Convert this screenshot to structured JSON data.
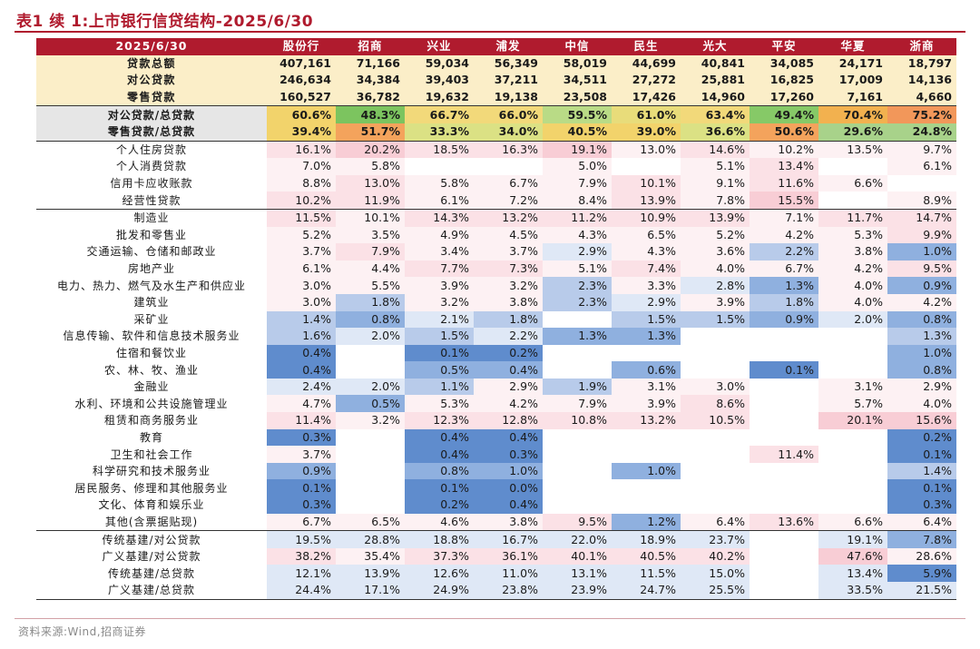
{
  "title": "表1 续 1:上市银行信贷结构-2025/6/30",
  "source": "资料来源:Wind,招商证券",
  "header": {
    "label": "2025/6/30",
    "banks": [
      "股份行",
      "招商",
      "兴业",
      "浦发",
      "中信",
      "民生",
      "光大",
      "平安",
      "华夏",
      "浙商"
    ]
  },
  "rows": [
    {
      "label": "贷款总额",
      "values": [
        "407,161",
        "71,166",
        "59,034",
        "56,349",
        "58,019",
        "44,699",
        "40,841",
        "34,085",
        "24,171",
        "18,797"
      ]
    },
    {
      "label": "对公贷款",
      "values": [
        "246,634",
        "34,384",
        "39,403",
        "37,211",
        "34,511",
        "27,272",
        "25,881",
        "16,825",
        "17,009",
        "14,136"
      ]
    },
    {
      "label": "零售贷款",
      "values": [
        "160,527",
        "36,782",
        "19,632",
        "19,138",
        "23,508",
        "17,426",
        "14,960",
        "17,260",
        "7,161",
        "4,660"
      ]
    },
    {
      "label": "对公贷款/总贷款",
      "values": [
        "60.6%",
        "48.3%",
        "66.7%",
        "66.0%",
        "59.5%",
        "61.0%",
        "63.4%",
        "49.4%",
        "70.4%",
        "75.2%"
      ]
    },
    {
      "label": "零售贷款/总贷款",
      "values": [
        "39.4%",
        "51.7%",
        "33.3%",
        "34.0%",
        "40.5%",
        "39.0%",
        "36.6%",
        "50.6%",
        "29.6%",
        "24.8%"
      ]
    },
    {
      "label": "个人住房贷款",
      "values": [
        "16.1%",
        "20.2%",
        "18.5%",
        "16.3%",
        "19.1%",
        "13.0%",
        "14.6%",
        "10.2%",
        "13.5%",
        "9.7%"
      ]
    },
    {
      "label": "个人消费贷款",
      "values": [
        "7.0%",
        "5.8%",
        "",
        "",
        "5.0%",
        "",
        "5.1%",
        "13.4%",
        "",
        "6.1%"
      ]
    },
    {
      "label": "信用卡应收账款",
      "values": [
        "8.8%",
        "13.0%",
        "5.8%",
        "6.7%",
        "7.9%",
        "10.1%",
        "9.1%",
        "11.6%",
        "6.6%",
        ""
      ]
    },
    {
      "label": "经营性贷款",
      "values": [
        "10.2%",
        "11.9%",
        "6.1%",
        "7.2%",
        "8.4%",
        "13.9%",
        "7.8%",
        "15.5%",
        "",
        "8.9%"
      ]
    },
    {
      "label": "制造业",
      "values": [
        "11.5%",
        "10.1%",
        "14.3%",
        "13.2%",
        "11.2%",
        "10.9%",
        "13.9%",
        "7.1%",
        "11.7%",
        "14.7%"
      ]
    },
    {
      "label": "批发和零售业",
      "values": [
        "5.2%",
        "3.5%",
        "4.9%",
        "4.5%",
        "4.3%",
        "6.5%",
        "5.2%",
        "4.2%",
        "5.3%",
        "9.9%"
      ]
    },
    {
      "label": "交通运输、仓储和邮政业",
      "values": [
        "3.7%",
        "7.9%",
        "3.4%",
        "3.7%",
        "2.9%",
        "4.3%",
        "3.6%",
        "2.2%",
        "3.8%",
        "1.0%"
      ]
    },
    {
      "label": "房地产业",
      "values": [
        "6.1%",
        "4.4%",
        "7.7%",
        "7.3%",
        "5.1%",
        "7.4%",
        "4.0%",
        "6.7%",
        "4.2%",
        "9.5%"
      ]
    },
    {
      "label": "电力、热力、燃气及水生产和供应业",
      "values": [
        "3.0%",
        "5.5%",
        "3.9%",
        "3.2%",
        "2.3%",
        "3.3%",
        "2.8%",
        "1.3%",
        "4.0%",
        "0.9%"
      ]
    },
    {
      "label": "建筑业",
      "values": [
        "3.0%",
        "1.8%",
        "3.2%",
        "3.8%",
        "2.3%",
        "2.9%",
        "3.9%",
        "1.8%",
        "4.0%",
        "4.2%"
      ]
    },
    {
      "label": "采矿业",
      "values": [
        "1.4%",
        "0.8%",
        "2.1%",
        "1.8%",
        "",
        "1.5%",
        "1.5%",
        "0.9%",
        "2.0%",
        "0.8%"
      ]
    },
    {
      "label": "信息传输、软件和信息技术服务业",
      "values": [
        "1.6%",
        "2.0%",
        "1.5%",
        "2.2%",
        "1.3%",
        "1.3%",
        "",
        "",
        "",
        "1.3%"
      ]
    },
    {
      "label": "住宿和餐饮业",
      "values": [
        "0.4%",
        "",
        "0.1%",
        "0.2%",
        "",
        "",
        "",
        "",
        "",
        "1.0%"
      ]
    },
    {
      "label": "农、林、牧、渔业",
      "values": [
        "0.4%",
        "",
        "0.5%",
        "0.4%",
        "",
        "0.6%",
        "",
        "0.1%",
        "",
        "0.8%"
      ]
    },
    {
      "label": "金融业",
      "values": [
        "2.4%",
        "2.0%",
        "1.1%",
        "2.9%",
        "1.9%",
        "3.1%",
        "3.0%",
        "",
        "3.1%",
        "2.9%"
      ]
    },
    {
      "label": "水利、环境和公共设施管理业",
      "values": [
        "4.7%",
        "0.5%",
        "5.3%",
        "4.2%",
        "7.9%",
        "3.9%",
        "8.6%",
        "",
        "5.7%",
        "4.0%"
      ]
    },
    {
      "label": "租赁和商务服务业",
      "values": [
        "11.4%",
        "3.2%",
        "12.3%",
        "12.8%",
        "10.8%",
        "13.2%",
        "10.5%",
        "",
        "20.1%",
        "15.6%"
      ]
    },
    {
      "label": "教育",
      "values": [
        "0.3%",
        "",
        "0.4%",
        "0.4%",
        "",
        "",
        "",
        "",
        "",
        "0.2%"
      ]
    },
    {
      "label": "卫生和社会工作",
      "values": [
        "3.7%",
        "",
        "0.4%",
        "0.3%",
        "",
        "",
        "",
        "11.4%",
        "",
        "0.1%"
      ]
    },
    {
      "label": "科学研究和技术服务业",
      "values": [
        "0.9%",
        "",
        "0.8%",
        "1.0%",
        "",
        "1.0%",
        "",
        "",
        "",
        "1.4%"
      ]
    },
    {
      "label": "居民服务、修理和其他服务业",
      "values": [
        "0.1%",
        "",
        "0.1%",
        "0.0%",
        "",
        "",
        "",
        "",
        "",
        "0.1%"
      ]
    },
    {
      "label": "文化、体育和娱乐业",
      "values": [
        "0.3%",
        "",
        "0.2%",
        "0.4%",
        "",
        "",
        "",
        "",
        "",
        "0.3%"
      ]
    },
    {
      "label": "其他(含票据贴现)",
      "values": [
        "6.7%",
        "6.5%",
        "4.6%",
        "3.8%",
        "9.5%",
        "1.2%",
        "6.4%",
        "13.6%",
        "6.6%",
        "6.4%"
      ]
    },
    {
      "label": "传统基建/对公贷款",
      "values": [
        "19.5%",
        "28.8%",
        "18.8%",
        "16.7%",
        "22.0%",
        "18.9%",
        "23.7%",
        "",
        "19.1%",
        "7.8%"
      ]
    },
    {
      "label": "广义基建/对公贷款",
      "values": [
        "38.2%",
        "35.4%",
        "37.3%",
        "36.1%",
        "40.1%",
        "40.5%",
        "40.2%",
        "",
        "47.6%",
        "28.6%"
      ]
    },
    {
      "label": "传统基建/总贷款",
      "values": [
        "12.1%",
        "13.9%",
        "12.6%",
        "11.0%",
        "13.1%",
        "11.5%",
        "15.0%",
        "",
        "13.4%",
        "5.9%"
      ]
    },
    {
      "label": "广义基建/总贷款",
      "values": [
        "24.4%",
        "17.1%",
        "24.9%",
        "23.8%",
        "23.9%",
        "24.7%",
        "25.5%",
        "",
        "33.5%",
        "21.5%"
      ]
    }
  ],
  "colors": {
    "accent": "#b01b2e",
    "header_bg": "#b01b2e",
    "summary_bg": "#fbeec8",
    "ratio_label_bg": "#e6e6e6"
  }
}
